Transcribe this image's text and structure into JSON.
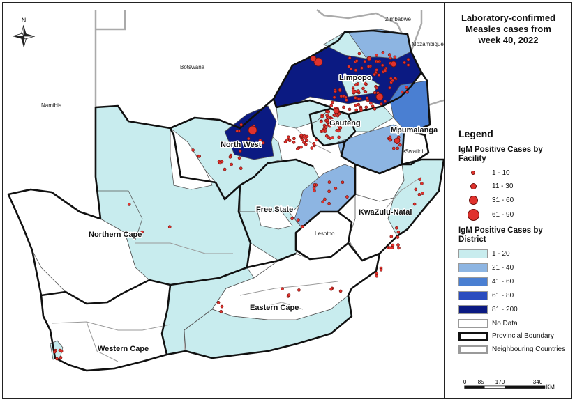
{
  "title": "Laboratory-confirmed Measles cases from week 40, 2022",
  "title_lines": [
    "Laboratory-confirmed",
    "Measles cases from",
    "week 40, 2022"
  ],
  "north_arrow": "N",
  "countries": {
    "zimbabwe": "Zimbabwe",
    "mozambique": "Mozambique",
    "botswana": "Botswana",
    "namibia": "Namibia",
    "eswatini": "eSwatini",
    "lesotho": "Lesotho"
  },
  "provinces": {
    "limpopo": "Limpopo",
    "gauteng": "Gauteng",
    "mpumalanga": "Mpumalanga",
    "north_west": "North West",
    "free_state": "Free State",
    "kwazulu_natal": "KwaZulu-Natal",
    "northern_cape": "Northern Cape",
    "eastern_cape": "Eastern Cape",
    "western_cape": "Western Cape"
  },
  "legend": {
    "heading": "Legend",
    "facility_title": "IgM Positive Cases by Facility",
    "facility_classes": [
      "1 - 10",
      "11 - 30",
      "31 - 60",
      "61 - 90"
    ],
    "district_title": "IgM Positive Cases by District",
    "district_classes": [
      {
        "label": "1 - 20",
        "color": "#c8ecee"
      },
      {
        "label": "21 - 40",
        "color": "#8db5e2"
      },
      {
        "label": "41 - 60",
        "color": "#4a7fd2"
      },
      {
        "label": "61 - 80",
        "color": "#2a4cbf"
      },
      {
        "label": "81 - 200",
        "color": "#0b1a82"
      },
      {
        "label": "No Data",
        "color": "#ffffff"
      }
    ],
    "provincial_boundary": "Provincial Boundary",
    "neighbouring_countries": "Neighbouring Countries"
  },
  "scale": {
    "ticks": [
      "0",
      "85",
      "170",
      "340"
    ],
    "unit": "KM"
  },
  "colors": {
    "point_fill": "#e0322d",
    "point_stroke": "#6b0f0a",
    "neighbour_fill": "#ffffff"
  }
}
